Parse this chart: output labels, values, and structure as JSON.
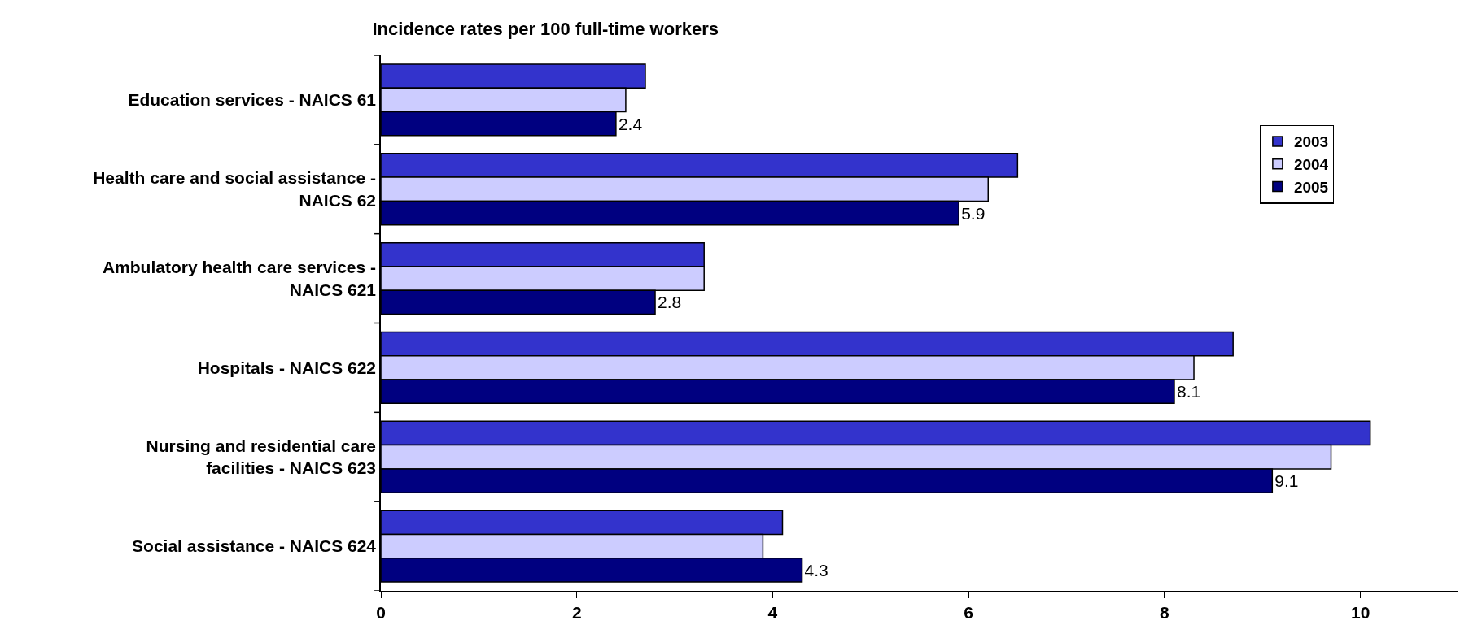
{
  "chart_data": {
    "type": "bar",
    "orientation": "horizontal",
    "title": "Incidence rates per 100 full-time workers",
    "categories": [
      "Education services - NAICS 61",
      "Health care and social assistance - NAICS 62",
      "Ambulatory health care services - NAICS 621",
      "Hospitals - NAICS 622",
      "Nursing and residential care facilities - NAICS 623",
      "Social assistance - NAICS 624"
    ],
    "series": [
      {
        "name": "2003",
        "color": "#3333cc",
        "values": [
          2.7,
          6.5,
          3.3,
          8.7,
          10.1,
          4.1
        ]
      },
      {
        "name": "2004",
        "color": "#ccccff",
        "values": [
          2.5,
          6.2,
          3.3,
          8.3,
          9.7,
          3.9
        ]
      },
      {
        "name": "2005",
        "color": "#000080",
        "values": [
          2.4,
          5.9,
          2.8,
          8.1,
          9.1,
          4.3
        ],
        "value_labels": [
          "2.4",
          "5.9",
          "2.8",
          "8.1",
          "9.1",
          "4.3"
        ]
      }
    ],
    "xlim": [
      0,
      11
    ],
    "xticks": [
      0,
      2,
      4,
      6,
      8,
      10
    ],
    "grid": false,
    "legend": "top right"
  }
}
